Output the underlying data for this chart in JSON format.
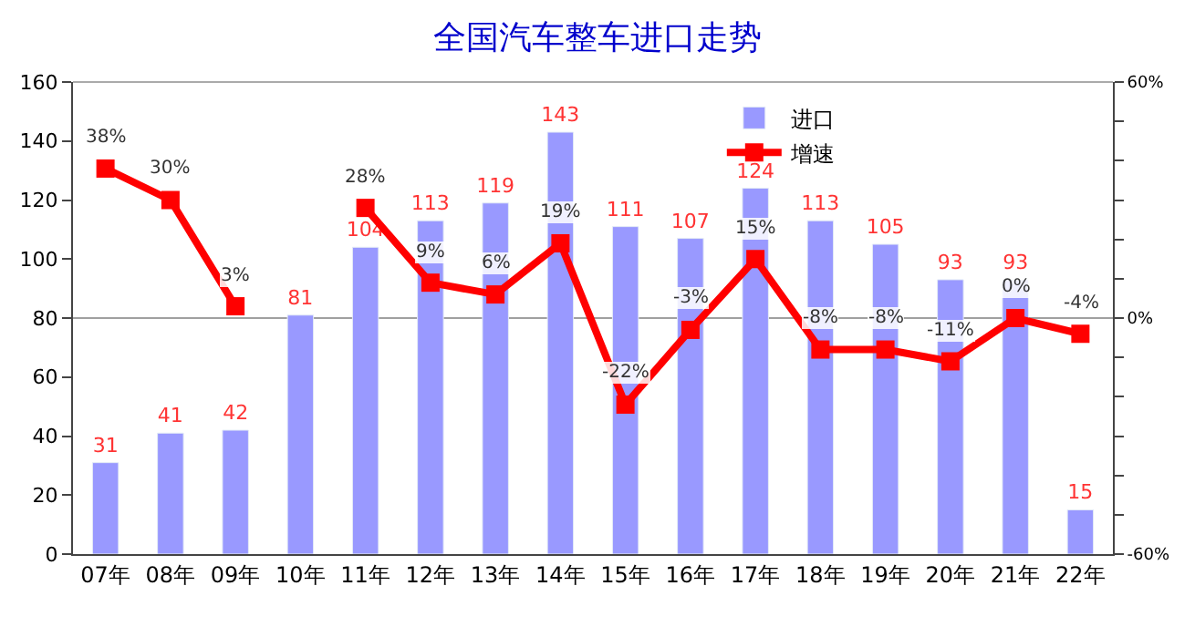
{
  "chart_data": {
    "type": "bar",
    "title": "全国汽车整车进口走势",
    "categories": [
      "07年",
      "08年",
      "09年",
      "10年",
      "11年",
      "12年",
      "13年",
      "14年",
      "15年",
      "16年",
      "17年",
      "18年",
      "19年",
      "20年",
      "21年",
      "22年"
    ],
    "series": [
      {
        "name": "进口",
        "color": "#9999ff",
        "values": [
          31,
          41,
          42,
          81,
          104,
          113,
          119,
          143,
          111,
          107,
          124,
          113,
          105,
          93,
          93,
          15
        ],
        "value_labels": [
          "31",
          "41",
          "42",
          "81",
          "104",
          "113",
          "119",
          "143",
          "111",
          "107",
          "124",
          "113",
          "105",
          "93",
          "93",
          "15"
        ]
      },
      {
        "name": "增速",
        "type": "line",
        "axis": "y2",
        "color": "#ff0000",
        "marker": "square",
        "values": [
          38,
          30,
          3,
          null,
          28,
          9,
          6,
          19,
          -22,
          -3,
          15,
          -8,
          -8,
          -11,
          0,
          -4
        ],
        "value_labels": [
          "38%",
          "30%",
          "3%",
          null,
          "28%",
          "9%",
          "6%",
          "19%",
          "-22%",
          "-3%",
          "15%",
          "-8%",
          "-8%",
          "-11%",
          "0%",
          "-4%"
        ]
      }
    ],
    "ylim": [
      0,
      160
    ],
    "yticks": [
      0,
      20,
      40,
      60,
      80,
      100,
      120,
      140,
      160
    ],
    "y2lim": [
      -60,
      60
    ],
    "y2ticks": [
      {
        "value": -60,
        "label": "-60%"
      },
      {
        "value": -50,
        "label": null
      },
      {
        "value": -40,
        "label": null
      },
      {
        "value": -30,
        "label": null
      },
      {
        "value": -20,
        "label": null
      },
      {
        "value": -10,
        "label": null
      },
      {
        "value": 0,
        "label": "0%"
      },
      {
        "value": 10,
        "label": null
      },
      {
        "value": 20,
        "label": null
      },
      {
        "value": 30,
        "label": null
      },
      {
        "value": 40,
        "label": null
      },
      {
        "value": 50,
        "label": null
      },
      {
        "value": 60,
        "label": "60%"
      }
    ],
    "ref_lines": [
      {
        "axis": "y2",
        "value": 0,
        "color": "#a0a0a0"
      }
    ],
    "legend": "top",
    "grid": false
  }
}
